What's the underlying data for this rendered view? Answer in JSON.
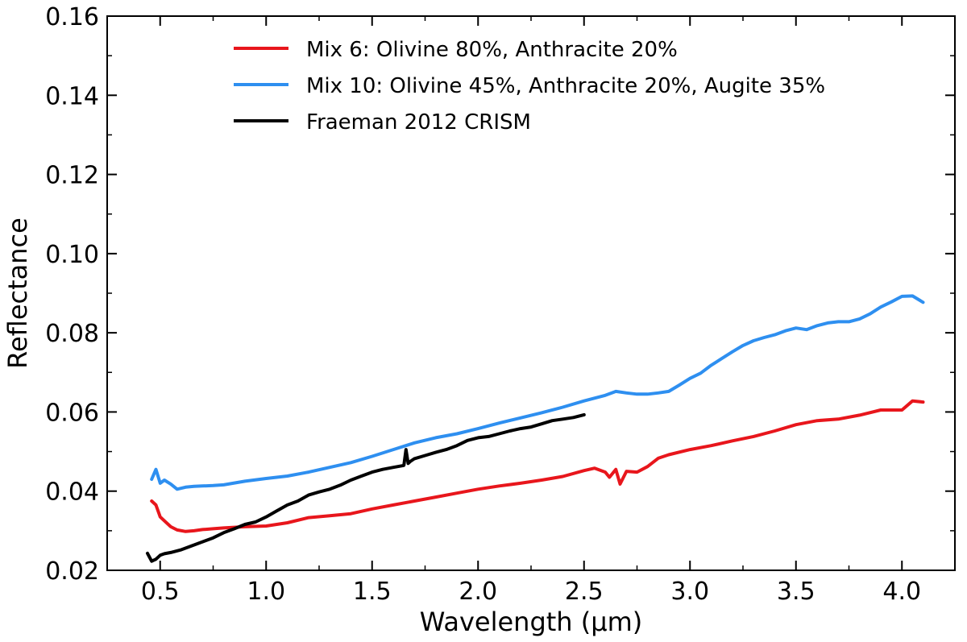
{
  "chart_data": {
    "type": "line",
    "title": "",
    "xlabel": "Wavelength (µm)",
    "ylabel": "Reflectance",
    "xlim": [
      0.25,
      4.25
    ],
    "ylim": [
      0.02,
      0.16
    ],
    "xticks": [
      0.5,
      1.0,
      1.5,
      2.0,
      2.5,
      3.0,
      3.5,
      4.0
    ],
    "xtick_labels": [
      "0.5",
      "1.0",
      "1.5",
      "2.0",
      "2.5",
      "3.0",
      "3.5",
      "4.0"
    ],
    "yticks": [
      0.02,
      0.04,
      0.06,
      0.08,
      0.1,
      0.12,
      0.14,
      0.16
    ],
    "ytick_labels": [
      "0.02",
      "0.04",
      "0.06",
      "0.08",
      "0.10",
      "0.12",
      "0.14",
      "0.16"
    ],
    "grid": false,
    "legend_position": "top",
    "series": [
      {
        "name": "Mix 6: Olivine 80%, Anthracite 20%",
        "color": "#e8161c",
        "x": [
          0.46,
          0.48,
          0.5,
          0.52,
          0.55,
          0.58,
          0.62,
          0.66,
          0.7,
          0.75,
          0.8,
          0.9,
          1.0,
          1.1,
          1.2,
          1.3,
          1.4,
          1.5,
          1.6,
          1.7,
          1.8,
          1.9,
          2.0,
          2.1,
          2.2,
          2.3,
          2.4,
          2.5,
          2.55,
          2.6,
          2.62,
          2.65,
          2.67,
          2.7,
          2.75,
          2.8,
          2.85,
          2.9,
          3.0,
          3.1,
          3.2,
          3.3,
          3.4,
          3.5,
          3.6,
          3.7,
          3.8,
          3.9,
          3.95,
          4.0,
          4.05,
          4.1
        ],
        "y": [
          0.0375,
          0.0365,
          0.0335,
          0.0325,
          0.031,
          0.0302,
          0.0298,
          0.03,
          0.0303,
          0.0305,
          0.0307,
          0.031,
          0.0312,
          0.032,
          0.0333,
          0.0338,
          0.0343,
          0.0355,
          0.0365,
          0.0375,
          0.0385,
          0.0395,
          0.0405,
          0.0413,
          0.042,
          0.0428,
          0.0437,
          0.0452,
          0.0458,
          0.0448,
          0.0435,
          0.0455,
          0.0418,
          0.045,
          0.0448,
          0.0462,
          0.0483,
          0.0492,
          0.0505,
          0.0515,
          0.0527,
          0.0538,
          0.0552,
          0.0568,
          0.0578,
          0.0582,
          0.0592,
          0.0605,
          0.0605,
          0.0605,
          0.0628,
          0.0625
        ]
      },
      {
        "name": "Mix 10: Olivine 45%, Anthracite 20%, Augite 35%",
        "color": "#2e8ff0",
        "x": [
          0.46,
          0.48,
          0.5,
          0.52,
          0.55,
          0.58,
          0.62,
          0.66,
          0.7,
          0.75,
          0.8,
          0.9,
          1.0,
          1.1,
          1.2,
          1.3,
          1.4,
          1.5,
          1.6,
          1.7,
          1.8,
          1.9,
          2.0,
          2.1,
          2.2,
          2.3,
          2.4,
          2.5,
          2.6,
          2.65,
          2.7,
          2.75,
          2.8,
          2.85,
          2.9,
          2.95,
          3.0,
          3.05,
          3.1,
          3.15,
          3.2,
          3.25,
          3.3,
          3.35,
          3.4,
          3.45,
          3.5,
          3.55,
          3.6,
          3.65,
          3.7,
          3.75,
          3.8,
          3.85,
          3.9,
          3.95,
          4.0,
          4.05,
          4.1
        ],
        "y": [
          0.043,
          0.0455,
          0.042,
          0.0428,
          0.0418,
          0.0405,
          0.041,
          0.0412,
          0.0413,
          0.0414,
          0.0416,
          0.0425,
          0.0432,
          0.0438,
          0.0448,
          0.046,
          0.0472,
          0.0488,
          0.0505,
          0.0522,
          0.0535,
          0.0545,
          0.0558,
          0.0572,
          0.0585,
          0.0598,
          0.0612,
          0.0628,
          0.0642,
          0.0652,
          0.0648,
          0.0645,
          0.0645,
          0.0648,
          0.0652,
          0.0668,
          0.0685,
          0.0698,
          0.0718,
          0.0735,
          0.0752,
          0.0768,
          0.078,
          0.0788,
          0.0795,
          0.0805,
          0.0812,
          0.0808,
          0.0818,
          0.0825,
          0.0828,
          0.0828,
          0.0835,
          0.0848,
          0.0865,
          0.0878,
          0.0892,
          0.0893,
          0.0877
        ]
      },
      {
        "name": "Fraeman 2012 CRISM",
        "color": "#000000",
        "x": [
          0.44,
          0.46,
          0.48,
          0.5,
          0.52,
          0.55,
          0.6,
          0.65,
          0.7,
          0.75,
          0.8,
          0.85,
          0.9,
          0.95,
          1.0,
          1.05,
          1.1,
          1.15,
          1.2,
          1.25,
          1.3,
          1.35,
          1.4,
          1.45,
          1.5,
          1.55,
          1.6,
          1.65,
          1.66,
          1.67,
          1.68,
          1.7,
          1.75,
          1.8,
          1.85,
          1.9,
          1.95,
          2.0,
          2.05,
          2.1,
          2.15,
          2.2,
          2.25,
          2.3,
          2.35,
          2.4,
          2.45,
          2.5
        ],
        "y": [
          0.0243,
          0.0223,
          0.0228,
          0.0238,
          0.0242,
          0.0245,
          0.0252,
          0.0262,
          0.0272,
          0.0282,
          0.0295,
          0.0305,
          0.0316,
          0.0322,
          0.0335,
          0.035,
          0.0365,
          0.0375,
          0.039,
          0.0398,
          0.0405,
          0.0415,
          0.0428,
          0.0438,
          0.0448,
          0.0455,
          0.046,
          0.0465,
          0.0505,
          0.047,
          0.0475,
          0.0482,
          0.049,
          0.0498,
          0.0505,
          0.0515,
          0.0528,
          0.0535,
          0.0538,
          0.0545,
          0.0552,
          0.0558,
          0.0562,
          0.057,
          0.0578,
          0.0582,
          0.0586,
          0.0593
        ]
      }
    ]
  }
}
